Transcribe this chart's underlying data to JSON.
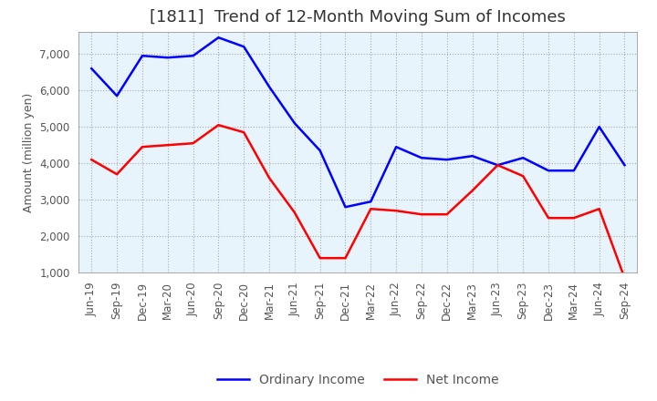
{
  "title": "[1811]  Trend of 12-Month Moving Sum of Incomes",
  "ylabel": "Amount (million yen)",
  "x_labels": [
    "Jun-19",
    "Sep-19",
    "Dec-19",
    "Mar-20",
    "Jun-20",
    "Sep-20",
    "Dec-20",
    "Mar-21",
    "Jun-21",
    "Sep-21",
    "Dec-21",
    "Mar-22",
    "Jun-22",
    "Sep-22",
    "Dec-22",
    "Mar-23",
    "Jun-23",
    "Sep-23",
    "Dec-23",
    "Mar-24",
    "Jun-24",
    "Sep-24"
  ],
  "ordinary_income": [
    6600,
    5850,
    6950,
    6900,
    6950,
    7450,
    7200,
    6100,
    5100,
    4350,
    2800,
    2950,
    4450,
    4150,
    4100,
    4200,
    3950,
    4150,
    3800,
    3800,
    5000,
    3950
  ],
  "net_income": [
    4100,
    3700,
    4450,
    4500,
    4550,
    5050,
    4850,
    3600,
    2650,
    1400,
    1400,
    2750,
    2700,
    2600,
    2600,
    3250,
    3950,
    3650,
    2500,
    2500,
    2750,
    850
  ],
  "ordinary_color": "#0000FF",
  "net_color": "#FF0000",
  "ylim_min": 1000,
  "ylim_max": 7600,
  "yticks": [
    1000,
    2000,
    3000,
    4000,
    5000,
    6000,
    7000
  ],
  "plot_bg_color": "#E8F4FC",
  "fig_bg_color": "#FFFFFF",
  "grid_color": "#AAAAAA",
  "title_fontsize": 13,
  "axis_fontsize": 9,
  "tick_fontsize": 8.5,
  "legend_fontsize": 10
}
